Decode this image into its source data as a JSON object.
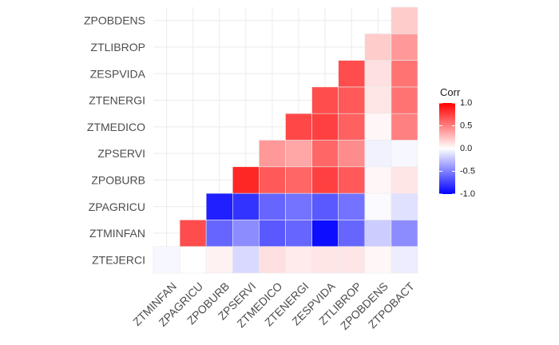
{
  "chart_data": {
    "type": "heatmap",
    "title": "",
    "xlabel": "",
    "ylabel": "",
    "x_categories": [
      "ZTMINFAN",
      "ZPAGRICU",
      "ZPOBURB",
      "ZPSERVI",
      "ZTMEDICO",
      "ZTENERGI",
      "ZESPVIDA",
      "ZTLIBROP",
      "ZPOBDENS",
      "ZTPOBACT"
    ],
    "y_categories": [
      "ZTEJERCI",
      "ZTMINFAN",
      "ZPAGRICU",
      "ZPOBURB",
      "ZPSERVI",
      "ZTMEDICO",
      "ZTENERGI",
      "ZESPVIDA",
      "ZTLIBROP",
      "ZPOBDENS"
    ],
    "values": [
      [
        -0.03,
        0.0,
        0.05,
        -0.15,
        0.12,
        0.08,
        0.1,
        0.1,
        0.03,
        -0.07
      ],
      [
        null,
        0.7,
        -0.6,
        -0.45,
        -0.65,
        -0.6,
        -0.95,
        -0.6,
        -0.2,
        -0.45
      ],
      [
        null,
        null,
        -0.88,
        -0.8,
        -0.6,
        -0.55,
        -0.65,
        -0.55,
        -0.02,
        -0.12
      ],
      [
        null,
        null,
        null,
        0.85,
        0.65,
        0.6,
        0.75,
        0.65,
        0.03,
        0.1
      ],
      [
        null,
        null,
        null,
        null,
        0.4,
        0.35,
        0.6,
        0.45,
        -0.05,
        -0.03
      ],
      [
        null,
        null,
        null,
        null,
        null,
        0.72,
        0.75,
        0.62,
        0.03,
        0.5
      ],
      [
        null,
        null,
        null,
        null,
        null,
        null,
        0.7,
        0.65,
        0.1,
        0.55
      ],
      [
        null,
        null,
        null,
        null,
        null,
        null,
        null,
        0.7,
        0.12,
        0.55
      ],
      [
        null,
        null,
        null,
        null,
        null,
        null,
        null,
        null,
        0.2,
        0.4
      ],
      [
        null,
        null,
        null,
        null,
        null,
        null,
        null,
        null,
        null,
        0.2
      ]
    ],
    "legend": {
      "title": "Corr",
      "labels": [
        "1.0",
        "0.5",
        "0.0",
        "-0.5",
        "-1.0"
      ],
      "ticks": [
        1.0,
        0.5,
        0.0,
        -0.5,
        -1.0
      ],
      "position": "right"
    },
    "colors": {
      "low": "#0000ff",
      "mid": "#ffffff",
      "high": "#ff0000"
    },
    "value_range": [
      -1,
      1
    ],
    "grid": true,
    "x_tick_rotation": 45
  }
}
